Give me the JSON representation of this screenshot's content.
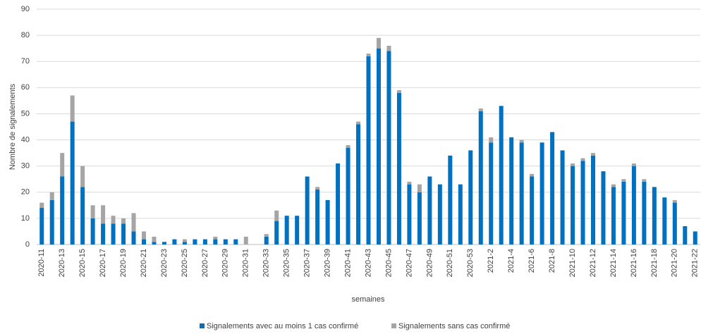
{
  "chart_data": {
    "type": "bar",
    "stacked": true,
    "x_label": "semaines",
    "y_label": "Nombre de signalements",
    "categories": [
      "2020-11",
      null,
      "2020-13",
      null,
      "2020-15",
      null,
      "2020-17",
      null,
      "2020-19",
      null,
      "2020-21",
      null,
      "2020-23",
      null,
      "2020-25",
      null,
      "2020-27",
      null,
      "2020-29",
      null,
      "2020-31",
      null,
      "2020-33",
      null,
      "2020-35",
      null,
      "2020-37",
      null,
      "2020-39",
      null,
      "2020-41",
      null,
      "2020-43",
      null,
      "2020-45",
      null,
      "2020-47",
      null,
      "2020-49",
      null,
      "2020-51",
      null,
      "2020-53",
      null,
      "2021-2",
      null,
      "2021-4",
      null,
      "2021-6",
      null,
      "2021-8",
      null,
      "2021-10",
      null,
      "2021-12",
      null,
      "2021-14",
      null,
      "2021-16",
      null,
      "2021-18",
      null,
      "2021-20",
      null,
      "2021-22"
    ],
    "series": [
      {
        "name": "Signalements avec au moins 1 cas confirmé",
        "color": "#0070c0",
        "values": [
          14,
          17,
          26,
          47,
          22,
          10,
          8,
          8,
          8,
          5,
          2,
          1,
          1,
          2,
          1,
          2,
          2,
          2,
          2,
          2,
          0,
          0,
          3,
          9,
          11,
          11,
          26,
          21,
          17,
          31,
          37,
          46,
          72,
          75,
          74,
          58,
          23,
          20,
          26,
          23,
          34,
          23,
          36,
          51,
          39,
          53,
          41,
          39,
          26,
          39,
          43,
          36,
          30,
          32,
          34,
          28,
          22,
          24,
          30,
          24,
          22,
          18,
          16,
          7,
          5
        ]
      },
      {
        "name": "Signalements sans cas confirmé",
        "color": "#a5a5a5",
        "values": [
          2,
          3,
          9,
          10,
          8,
          5,
          7,
          3,
          2,
          7,
          3,
          2,
          0,
          0,
          1,
          0,
          0,
          1,
          0,
          0,
          3,
          0,
          1,
          4,
          0,
          0,
          0,
          1,
          0,
          0,
          1,
          1,
          1,
          4,
          2,
          1,
          1,
          3,
          0,
          0,
          0,
          0,
          0,
          1,
          2,
          0,
          0,
          1,
          1,
          0,
          0,
          0,
          1,
          1,
          1,
          0,
          1,
          1,
          1,
          1,
          0,
          0,
          1,
          0,
          0
        ]
      }
    ],
    "ylim": [
      0,
      90
    ],
    "yticks": [
      0,
      10,
      20,
      30,
      40,
      50,
      60,
      70,
      80,
      90
    ],
    "grid": true
  }
}
